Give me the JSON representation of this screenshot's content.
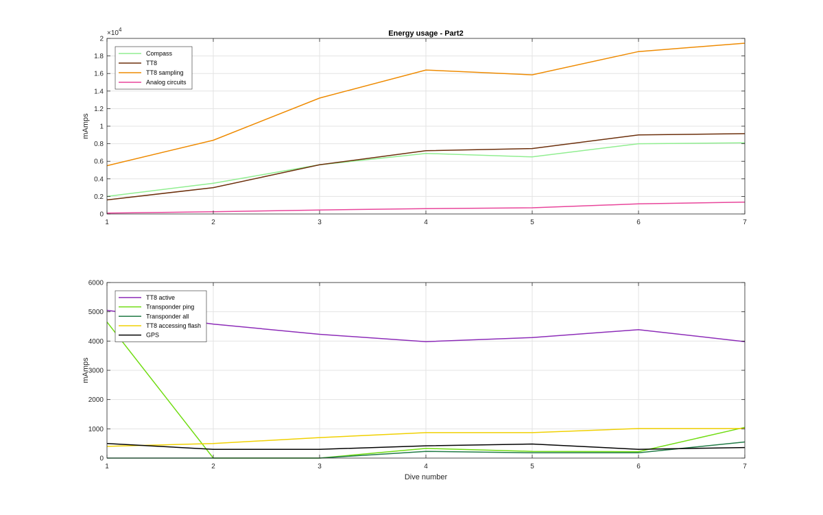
{
  "chart_data": [
    {
      "type": "line",
      "title": "Energy usage - Part2",
      "xlabel": "",
      "ylabel": "mAmps",
      "exponent_label": "×10",
      "exponent_power": "4",
      "x": [
        1,
        2,
        3,
        4,
        5,
        6,
        7
      ],
      "xlim": [
        1,
        7
      ],
      "ylim": [
        0,
        20000
      ],
      "yticks": [
        0,
        2000,
        4000,
        6000,
        8000,
        10000,
        12000,
        14000,
        16000,
        18000,
        20000
      ],
      "ytick_labels": [
        "0",
        "0.2",
        "0.4",
        "0.6",
        "0.8",
        "1",
        "1.2",
        "1.4",
        "1.6",
        "1.8",
        "2"
      ],
      "grid": true,
      "legend_position": "top-left",
      "series": [
        {
          "name": "Compass",
          "color": "#90ee90",
          "values": [
            2000,
            3500,
            5600,
            6900,
            6500,
            8000,
            8100
          ]
        },
        {
          "name": "TT8",
          "color": "#6b2e0a",
          "values": [
            1600,
            3000,
            5600,
            7200,
            7450,
            9000,
            9150
          ]
        },
        {
          "name": "TT8 sampling",
          "color": "#ee8a00",
          "values": [
            5500,
            8400,
            13200,
            16400,
            15850,
            18500,
            19450
          ]
        },
        {
          "name": "Analog circuits",
          "color": "#e8449a",
          "values": [
            100,
            250,
            450,
            600,
            700,
            1150,
            1350
          ]
        }
      ]
    },
    {
      "type": "line",
      "title": "",
      "xlabel": "Dive number",
      "ylabel": "mAmps",
      "x": [
        1,
        2,
        3,
        4,
        5,
        6,
        7
      ],
      "xlim": [
        1,
        7
      ],
      "ylim": [
        0,
        6000
      ],
      "yticks": [
        0,
        1000,
        2000,
        3000,
        4000,
        5000,
        6000
      ],
      "ytick_labels": [
        "0",
        "1000",
        "2000",
        "3000",
        "4000",
        "5000",
        "6000"
      ],
      "grid": true,
      "legend_position": "top-left",
      "series": [
        {
          "name": "TT8 active",
          "color": "#8c2bb8",
          "values": [
            5050,
            4580,
            4230,
            3980,
            4120,
            4390,
            3980
          ]
        },
        {
          "name": "Transponder ping",
          "color": "#6fdc10",
          "values": [
            4650,
            0,
            0,
            330,
            230,
            220,
            1050
          ]
        },
        {
          "name": "Transponder all",
          "color": "#1f7a45",
          "values": [
            0,
            0,
            0,
            230,
            180,
            180,
            550
          ]
        },
        {
          "name": "TT8 accessing flash",
          "color": "#f0d000",
          "values": [
            400,
            500,
            700,
            870,
            870,
            1010,
            1010
          ]
        },
        {
          "name": "GPS",
          "color": "#000000",
          "values": [
            500,
            300,
            300,
            420,
            480,
            300,
            360
          ]
        }
      ]
    }
  ]
}
